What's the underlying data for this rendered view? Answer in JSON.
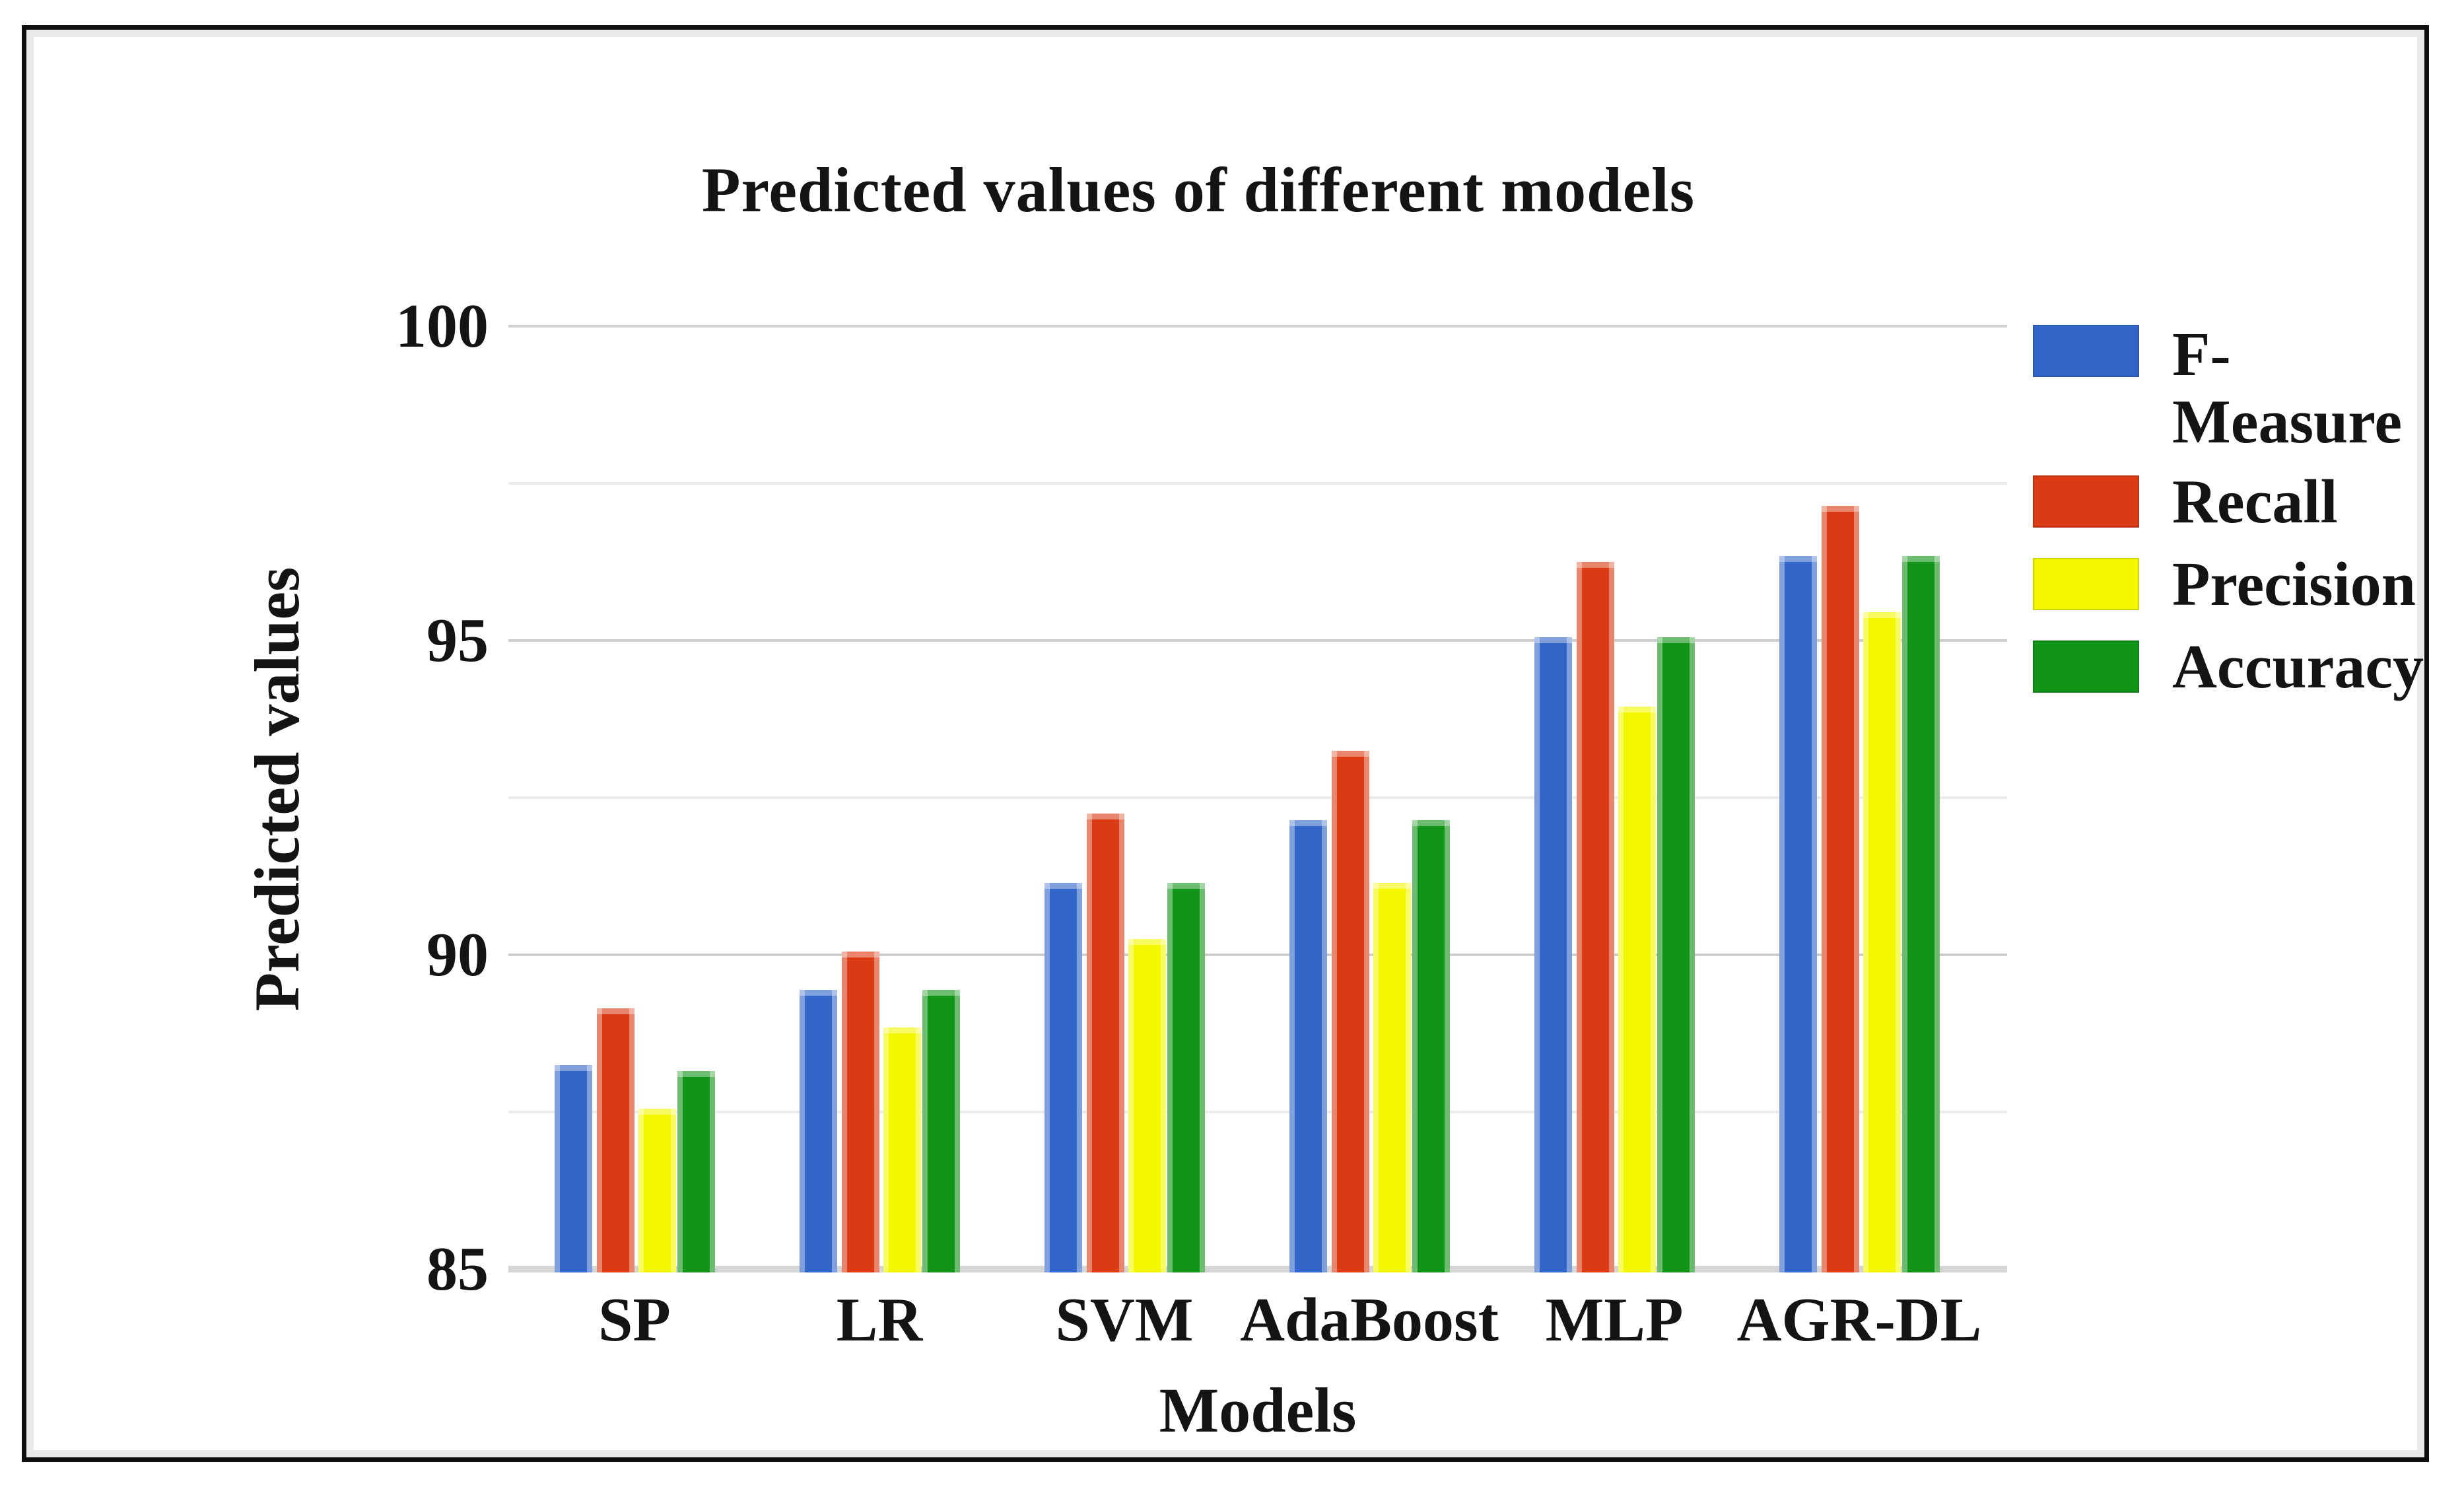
{
  "figure": {
    "title": "Predicted values of different models",
    "x_axis_title": "Models",
    "y_axis_title": "Predicted values"
  },
  "legend": {
    "position": "right",
    "items": [
      {
        "name": "F-Measure",
        "lines": [
          "F-",
          "Measure"
        ],
        "color": "#3165C8"
      },
      {
        "name": "Recall",
        "lines": [
          "Recall"
        ],
        "color": "#DA3B14"
      },
      {
        "name": "Precision",
        "lines": [
          "Precision"
        ],
        "color": "#F3F700"
      },
      {
        "name": "Accuracy",
        "lines": [
          "Accuracy"
        ],
        "color": "#119418"
      }
    ]
  },
  "chart_data": {
    "type": "bar",
    "title": "Predicted values of different models",
    "xlabel": "Models",
    "ylabel": "Predicted values",
    "categories": [
      "SP",
      "LR",
      "SVM",
      "AdaBoost",
      "MLP",
      "AGR-DL"
    ],
    "series": [
      {
        "name": "F-Measure",
        "color": "#3165C8",
        "values": [
          88.3,
          89.5,
          91.2,
          92.2,
          95.1,
          96.4
        ]
      },
      {
        "name": "Recall",
        "color": "#DA3B14",
        "values": [
          89.2,
          90.1,
          92.3,
          93.3,
          96.3,
          97.2
        ]
      },
      {
        "name": "Precision",
        "color": "#F3F700",
        "values": [
          87.6,
          88.9,
          90.3,
          91.2,
          94.0,
          95.5
        ]
      },
      {
        "name": "Accuracy",
        "color": "#119418",
        "values": [
          88.2,
          89.5,
          91.2,
          92.2,
          95.1,
          96.4
        ]
      }
    ],
    "ylim": [
      85,
      100
    ],
    "yticks": [
      100,
      95,
      90,
      85
    ],
    "minor_gridlines": [
      97.5,
      92.5,
      87.5
    ],
    "grid": true,
    "legend_position": "right"
  },
  "colors": {
    "major_gridline": "#CFCFCF",
    "minor_gridline": "#ECECEC",
    "baseline": "#D5D5D5",
    "text": "#141414",
    "frame": "#0E0E0E",
    "background": "#FFFFFF"
  }
}
